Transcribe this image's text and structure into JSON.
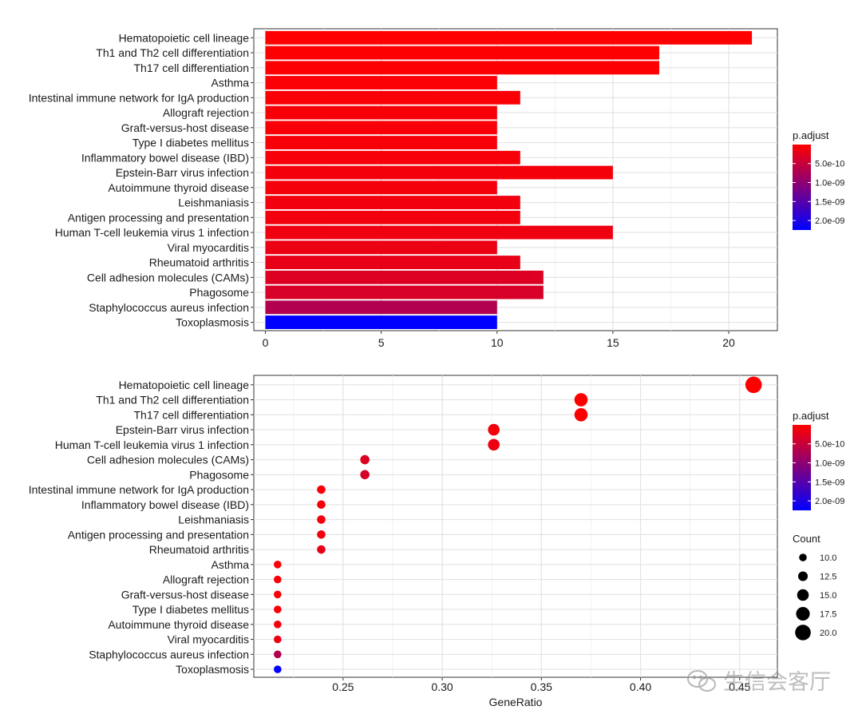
{
  "chart_data": [
    {
      "type": "bar",
      "orientation": "horizontal",
      "title": "",
      "xlabel": "",
      "ylabel": "",
      "categories": [
        "Hematopoietic cell lineage",
        "Th1 and Th2 cell differentiation",
        "Th17 cell differentiation",
        "Asthma",
        "Intestinal immune network for IgA production",
        "Allograft rejection",
        "Graft-versus-host disease",
        "Type I diabetes mellitus",
        "Inflammatory bowel disease (IBD)",
        "Epstein-Barr virus infection",
        "Autoimmune thyroid disease",
        "Leishmaniasis",
        "Antigen processing and presentation",
        "Human T-cell leukemia virus 1 infection",
        "Viral myocarditis",
        "Rheumatoid arthritis",
        "Cell adhesion molecules (CAMs)",
        "Phagosome",
        "Staphylococcus aureus infection",
        "Toxoplasmosis"
      ],
      "values": [
        21,
        17,
        17,
        10,
        11,
        10,
        10,
        10,
        11,
        15,
        10,
        11,
        11,
        15,
        10,
        11,
        12,
        12,
        10,
        10
      ],
      "p_adjust": [
        1e-12,
        2e-11,
        2e-11,
        4e-11,
        5e-11,
        6e-11,
        6e-11,
        6e-11,
        8e-11,
        1e-10,
        1e-10,
        1.2e-10,
        1.2e-10,
        1.5e-10,
        1.7e-10,
        2e-10,
        3e-10,
        3.5e-10,
        7e-10,
        2.25e-09
      ],
      "xticks": [
        0,
        5,
        10,
        15,
        20
      ],
      "xlim": [
        -0.5,
        22.1
      ],
      "grid": true,
      "legend": {
        "title": "p.adjust",
        "placement": "right",
        "tick_values": [
          5e-10,
          1e-09,
          1.5e-09,
          2e-09
        ],
        "tick_labels": [
          "5.0e-10",
          "1.0e-09",
          "1.5e-09",
          "2.0e-09"
        ],
        "range": [
          1e-12,
          2.25e-09
        ],
        "low_color": "#ff0000",
        "high_color": "#0000ff"
      }
    },
    {
      "type": "scatter",
      "title": "",
      "xlabel": "GeneRatio",
      "ylabel": "",
      "categories": [
        "Hematopoietic cell lineage",
        "Th1 and Th2 cell differentiation",
        "Th17 cell differentiation",
        "Epstein-Barr virus infection",
        "Human T-cell leukemia virus 1 infection",
        "Cell adhesion molecules (CAMs)",
        "Phagosome",
        "Intestinal immune network for IgA production",
        "Inflammatory bowel disease (IBD)",
        "Leishmaniasis",
        "Antigen processing and presentation",
        "Rheumatoid arthritis",
        "Asthma",
        "Allograft rejection",
        "Graft-versus-host disease",
        "Type I diabetes mellitus",
        "Autoimmune thyroid disease",
        "Viral myocarditis",
        "Staphylococcus aureus infection",
        "Toxoplasmosis"
      ],
      "gene_ratio": [
        0.457,
        0.37,
        0.37,
        0.326,
        0.326,
        0.261,
        0.261,
        0.239,
        0.239,
        0.239,
        0.239,
        0.239,
        0.217,
        0.217,
        0.217,
        0.217,
        0.217,
        0.217,
        0.217,
        0.217
      ],
      "count": [
        21,
        17,
        17,
        15,
        15,
        12,
        12,
        11,
        11,
        11,
        11,
        11,
        10,
        10,
        10,
        10,
        10,
        10,
        10,
        10
      ],
      "p_adjust": [
        1e-12,
        2e-11,
        2e-11,
        1e-10,
        1.5e-10,
        3e-10,
        3.5e-10,
        5e-11,
        8e-11,
        1.2e-10,
        1.2e-10,
        2e-10,
        4e-11,
        6e-11,
        6e-11,
        6e-11,
        1e-10,
        1.7e-10,
        7e-10,
        2.25e-09
      ],
      "xticks": [
        0.25,
        0.3,
        0.35,
        0.4,
        0.45
      ],
      "xtick_labels": [
        "0.25",
        "0.30",
        "0.35",
        "0.40",
        "0.45"
      ],
      "xlim": [
        0.205,
        0.469
      ],
      "grid": true,
      "legend": {
        "color_title": "p.adjust",
        "size_title": "Count",
        "placement": "right",
        "tick_values": [
          5e-10,
          1e-09,
          1.5e-09,
          2e-09
        ],
        "tick_labels": [
          "5.0e-10",
          "1.0e-09",
          "1.5e-09",
          "2.0e-09"
        ],
        "range": [
          1e-12,
          2.25e-09
        ],
        "low_color": "#ff0000",
        "high_color": "#0000ff",
        "size_values": [
          10,
          12.5,
          15,
          17.5,
          20
        ],
        "size_labels": [
          "10.0",
          "12.5",
          "15.0",
          "17.5",
          "20.0"
        ]
      }
    }
  ],
  "watermark": {
    "text": "生信会客厅",
    "icon": "wechat-icon"
  }
}
